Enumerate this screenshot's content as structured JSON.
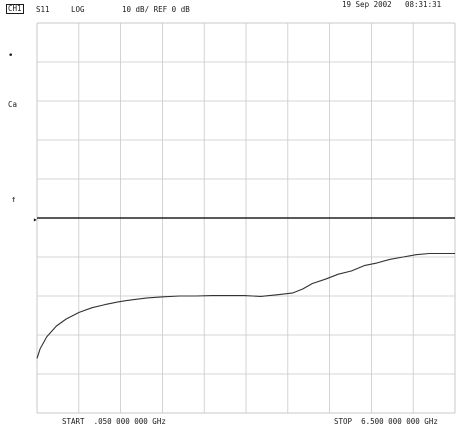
{
  "header": {
    "date": "19 Sep 2002",
    "time": "08:31:31",
    "channel": "CH1",
    "parameter": "S11",
    "format": "LOG",
    "scale": "10 dB/ REF 0 dB"
  },
  "side_markers": {
    "dot": "•",
    "cal": "Ca",
    "ref_arrow": "↑",
    "ref_pointer": "▸"
  },
  "footer": {
    "start": "START  .050 000 000 GHz",
    "stop": "STOP  6.500 000 000 GHz"
  },
  "colors": {
    "trace": "#333333",
    "grid": "#c8c8c8",
    "ref_line": "#222222"
  },
  "chart_data": {
    "type": "line",
    "grid": true,
    "divisions": {
      "x": 10,
      "y": 10
    },
    "x_units": "GHz",
    "y_units": "dB",
    "xlim": [
      0.05,
      6.5
    ],
    "ylim": [
      -50,
      50
    ],
    "reference_level": 0,
    "series": [
      {
        "x": [
          0.05,
          0.1,
          0.2,
          0.35,
          0.5,
          0.7,
          0.9,
          1.1,
          1.3,
          1.5,
          1.75,
          2.0,
          2.25,
          2.5,
          2.75,
          3.0,
          3.25,
          3.5,
          3.75,
          4.0,
          4.15,
          4.3,
          4.5,
          4.7,
          4.9,
          5.1,
          5.3,
          5.5,
          5.7,
          5.9,
          6.1,
          6.3,
          6.5
        ],
        "y": [
          -36,
          -33.5,
          -30.5,
          -27.7,
          -25.9,
          -24.2,
          -23,
          -22.2,
          -21.5,
          -21,
          -20.5,
          -20.2,
          -20,
          -20,
          -19.9,
          -19.9,
          -19.9,
          -20.1,
          -19.7,
          -19.2,
          -18.2,
          -16.8,
          -15.7,
          -14.4,
          -13.6,
          -12.2,
          -11.5,
          -10.6,
          -10,
          -9.4,
          -9.1,
          -9.1,
          -9.1
        ]
      }
    ]
  }
}
